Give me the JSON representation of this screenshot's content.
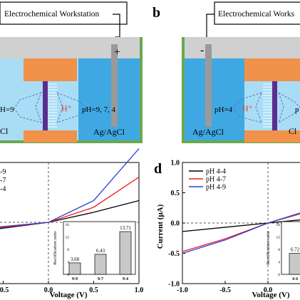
{
  "panels": {
    "a": {
      "workstation_label": "Electrochemical Workstation",
      "plus_sign": "+",
      "left_ph": "H=9",
      "ion": "H⁺",
      "right_ph": "pH=9, 7, 4",
      "left_electrode": "Cl",
      "right_electrode": "Ag/AgCl"
    },
    "b": {
      "panel_letter": "b",
      "workstation_label": "Electrochemical Works",
      "minus_sign": "-",
      "left_ph": "pH=4",
      "ion": "H⁺",
      "right_ph": "p",
      "left_electrode": "Ag/AgCl",
      "right_electrode": "Cl"
    }
  },
  "colors": {
    "outer_bath": "#a9ddf5",
    "inner_bath": "#3fa8e2",
    "rim": "#6aa84f",
    "lid": "#d0d0d0",
    "block": "#f0924a",
    "membrane": "#5b2d8e",
    "electrode": "#9a9a9a",
    "ion_text": "#e63a2a",
    "arrow_dash": "#5577cc",
    "black": "#000000",
    "red": "#e8211c",
    "blue": "#2b3fd8"
  },
  "chart_data": [
    {
      "type": "line",
      "panel": "c (partial)",
      "xlabel": "Voltage (V)",
      "xlim": [
        -1.0,
        1.0
      ],
      "x_ticks": [
        "-0.5",
        "0.0",
        "0.5",
        "1.0"
      ],
      "legend_partial": [
        "-9",
        "-7",
        "-4"
      ],
      "series": [
        {
          "name": "pH 9-9",
          "color": "#000000",
          "x": [
            -1.0,
            -0.5,
            0.0,
            0.5,
            1.0
          ],
          "y": [
            -0.07,
            -0.035,
            0.0,
            0.06,
            0.13
          ]
        },
        {
          "name": "pH 9-7",
          "color": "#e8211c",
          "x": [
            -1.0,
            -0.5,
            0.0,
            0.5,
            1.0
          ],
          "y": [
            -0.06,
            -0.03,
            0.0,
            0.09,
            0.27
          ]
        },
        {
          "name": "pH 9-4",
          "color": "#2b3fd8",
          "x": [
            -1.0,
            -0.5,
            0.0,
            0.5,
            1.0
          ],
          "y": [
            -0.05,
            -0.025,
            0.0,
            0.13,
            0.44
          ]
        }
      ],
      "inset": {
        "type": "bar",
        "ylabel": "Rectification ratio",
        "ylim": [
          0,
          16
        ],
        "y_ticks": [
          "0",
          "4",
          "8",
          "12",
          "16"
        ],
        "categories": [
          "9-9",
          "9-7",
          "9-4"
        ],
        "values": [
          3.68,
          6.43,
          13.71
        ],
        "value_labels": [
          "3.68",
          "6.43",
          "13.71"
        ]
      }
    },
    {
      "type": "line",
      "panel": "d",
      "panel_letter": "d",
      "xlabel": "Voltage (V)",
      "ylabel": "Current (μA)",
      "xlim": [
        -1.0,
        1.0
      ],
      "ylim": [
        -1.0,
        1.0
      ],
      "x_ticks": [
        "-1.0",
        "-0.5",
        "0.0",
        "0.5"
      ],
      "y_ticks": [
        "1.0",
        "0.5",
        "0.0",
        "-0.5",
        "-1.0"
      ],
      "series": [
        {
          "name": "pH 4-4",
          "color": "#000000",
          "x": [
            -1.0,
            -0.5,
            0.0,
            0.5,
            1.0
          ],
          "y": [
            -0.14,
            -0.07,
            0.0,
            0.07,
            0.14
          ]
        },
        {
          "name": "pH 4-7",
          "color": "#e8211c",
          "x": [
            -1.0,
            -0.5,
            0.0,
            0.5,
            1.0
          ],
          "y": [
            -0.47,
            -0.26,
            0.0,
            0.2,
            0.4
          ]
        },
        {
          "name": "pH 4-9",
          "color": "#2b3fd8",
          "x": [
            -1.0,
            -0.5,
            0.0,
            0.5,
            1.0
          ],
          "y": [
            -0.5,
            -0.28,
            0.0,
            0.22,
            0.44
          ]
        }
      ],
      "inset": {
        "type": "bar",
        "ylabel": "Rectification ratio",
        "ylim": [
          0,
          16
        ],
        "y_ticks": [
          "0",
          "4",
          "8",
          "12",
          "16"
        ],
        "categories": [
          "4-4"
        ],
        "values": [
          6.72
        ],
        "value_labels": [
          "6.72"
        ]
      }
    }
  ]
}
